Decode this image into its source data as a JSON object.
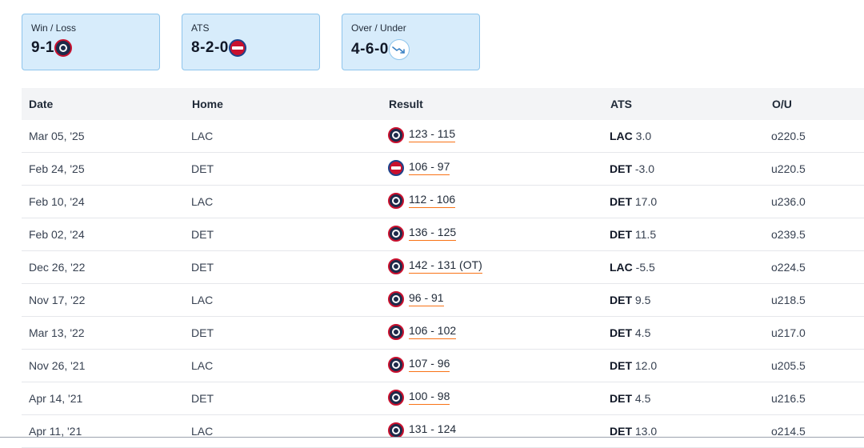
{
  "stats": {
    "win_loss": {
      "label": "Win / Loss",
      "value": "9-1",
      "logo": "lac-logo-icon"
    },
    "ats": {
      "label": "ATS",
      "value": "8-2-0",
      "logo": "det-logo-icon"
    },
    "over_under": {
      "label": "Over / Under",
      "value": "4-6-0",
      "icon": "trend-down-icon"
    }
  },
  "table": {
    "headers": {
      "date": "Date",
      "home": "Home",
      "result": "Result",
      "ats": "ATS",
      "ou": "O/U"
    },
    "rows": [
      {
        "date": "Mar 05, '25",
        "home": "LAC",
        "winner": "LAC",
        "score": "123 - 115",
        "ats_team": "LAC",
        "ats_line": "3.0",
        "ou": "o220.5"
      },
      {
        "date": "Feb 24, '25",
        "home": "DET",
        "winner": "DET",
        "score": "106 - 97",
        "ats_team": "DET",
        "ats_line": "-3.0",
        "ou": "u220.5"
      },
      {
        "date": "Feb 10, '24",
        "home": "LAC",
        "winner": "LAC",
        "score": "112 - 106",
        "ats_team": "DET",
        "ats_line": "17.0",
        "ou": "u236.0"
      },
      {
        "date": "Feb 02, '24",
        "home": "DET",
        "winner": "LAC",
        "score": "136 - 125",
        "ats_team": "DET",
        "ats_line": "11.5",
        "ou": "o239.5"
      },
      {
        "date": "Dec 26, '22",
        "home": "DET",
        "winner": "LAC",
        "score": "142 - 131 (OT)",
        "ats_team": "LAC",
        "ats_line": "-5.5",
        "ou": "o224.5"
      },
      {
        "date": "Nov 17, '22",
        "home": "LAC",
        "winner": "LAC",
        "score": "96 - 91",
        "ats_team": "DET",
        "ats_line": "9.5",
        "ou": "u218.5"
      },
      {
        "date": "Mar 13, '22",
        "home": "DET",
        "winner": "LAC",
        "score": "106 - 102",
        "ats_team": "DET",
        "ats_line": "4.5",
        "ou": "u217.0"
      },
      {
        "date": "Nov 26, '21",
        "home": "LAC",
        "winner": "LAC",
        "score": "107 - 96",
        "ats_team": "DET",
        "ats_line": "12.0",
        "ou": "u205.5"
      },
      {
        "date": "Apr 14, '21",
        "home": "DET",
        "winner": "LAC",
        "score": "100 - 98",
        "ats_team": "DET",
        "ats_line": "4.5",
        "ou": "u216.5"
      },
      {
        "date": "Apr 11, '21",
        "home": "LAC",
        "winner": "LAC",
        "score": "131 - 124",
        "ats_team": "DET",
        "ats_line": "13.0",
        "ou": "o214.5"
      }
    ]
  },
  "colors": {
    "card_bg": "#d7ecfb",
    "card_border": "#8ec5ec",
    "score_underline": "#f97316",
    "lac_navy": "#1e2a4a",
    "det_red": "#c8102e"
  }
}
